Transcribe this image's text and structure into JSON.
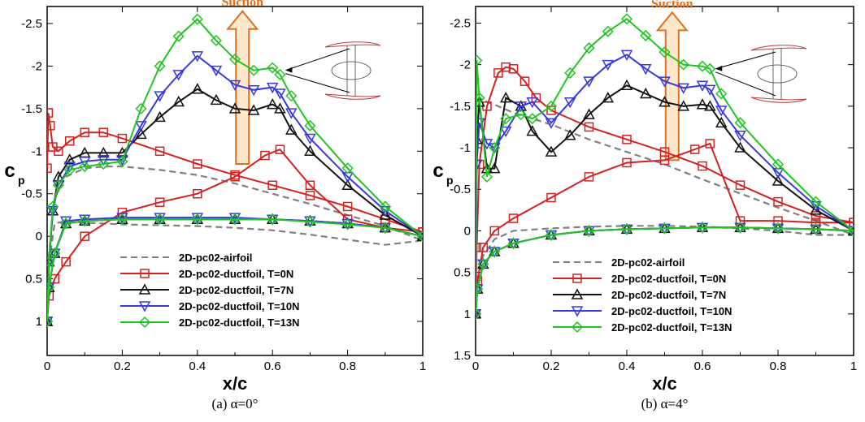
{
  "colors": {
    "airfoil": "#808080",
    "T0": "#d42020",
    "T7": "#111111",
    "T10": "#3838e0",
    "T13": "#22c422",
    "arrow_fill": "#fde8cc",
    "arrow_stroke": "#e0701f"
  },
  "chart_data": [
    {
      "type": "line",
      "caption": "(a) α=0°",
      "xlabel": "x/c",
      "ylabel": "c",
      "ylabel_sub": "p",
      "xlim": [
        0,
        1
      ],
      "ylim": [
        -2.7,
        1.4
      ],
      "y_inverted": true,
      "x_ticks": [
        "0",
        "0.2",
        "0.4",
        "0.6",
        "0.8",
        "1"
      ],
      "y_ticks": [
        "-2.5",
        "-2",
        "-1.5",
        "-1",
        "-0.5",
        "0",
        "0.5",
        "1"
      ],
      "annotation": "Suction",
      "legend": [
        "2D-pc02-airfoil",
        "2D-pc02-ductfoil, T=0N",
        "2D-pc02-ductfoil, T=7N",
        "2D-pc02-ductfoil, T=10N",
        "2D-pc02-ductfoil, T=13N"
      ],
      "series": [
        {
          "name": "2D-pc02-airfoil",
          "marker": "none",
          "dashed": true,
          "color_key": "airfoil",
          "x": [
            0,
            0.005,
            0.02,
            0.05,
            0.1,
            0.15,
            0.2,
            0.3,
            0.4,
            0.5,
            0.6,
            0.7,
            0.8,
            0.9,
            1.0,
            1.0,
            0.9,
            0.8,
            0.7,
            0.6,
            0.5,
            0.4,
            0.3,
            0.2,
            0.1,
            0.05,
            0.02,
            0.005,
            0
          ],
          "y": [
            1.0,
            0.2,
            -0.45,
            -0.7,
            -0.8,
            -0.82,
            -0.82,
            -0.78,
            -0.72,
            -0.62,
            -0.5,
            -0.38,
            -0.25,
            -0.12,
            0.05,
            0.05,
            0.1,
            0.04,
            -0.02,
            -0.07,
            -0.1,
            -0.12,
            -0.13,
            -0.14,
            -0.16,
            -0.18,
            -0.15,
            0.3,
            1.0
          ]
        },
        {
          "name": "2D-pc02-ductfoil, T=0N",
          "marker": "square",
          "color_key": "T0",
          "x": [
            0,
            0.003,
            0.008,
            0.015,
            0.03,
            0.06,
            0.1,
            0.15,
            0.2,
            0.3,
            0.4,
            0.5,
            0.6,
            0.7,
            0.8,
            0.9,
            1.0,
            1.0,
            0.9,
            0.8,
            0.7,
            0.62,
            0.58,
            0.5,
            0.4,
            0.3,
            0.2,
            0.1,
            0.05,
            0.02,
            0.005,
            0
          ],
          "y": [
            -0.8,
            -1.45,
            -1.3,
            -1.05,
            -1.0,
            -1.12,
            -1.22,
            -1.22,
            -1.15,
            -1.0,
            -0.85,
            -0.72,
            -0.6,
            -0.48,
            -0.35,
            -0.2,
            -0.05,
            -0.05,
            -0.1,
            -0.2,
            -0.6,
            -1.02,
            -0.95,
            -0.7,
            -0.5,
            -0.4,
            -0.28,
            0.0,
            0.3,
            0.5,
            0.7,
            1.0
          ]
        },
        {
          "name": "2D-pc02-ductfoil, T=7N",
          "marker": "triangle-up",
          "color_key": "T7",
          "x": [
            0,
            0.005,
            0.015,
            0.03,
            0.06,
            0.1,
            0.15,
            0.2,
            0.25,
            0.3,
            0.35,
            0.4,
            0.45,
            0.5,
            0.55,
            0.6,
            0.62,
            0.65,
            0.7,
            0.8,
            0.9,
            1.0,
            1.0,
            0.9,
            0.8,
            0.7,
            0.6,
            0.5,
            0.4,
            0.3,
            0.2,
            0.1,
            0.05,
            0.02,
            0.005,
            0
          ],
          "y": [
            1.0,
            0.3,
            -0.3,
            -0.7,
            -0.9,
            -0.98,
            -0.98,
            -0.98,
            -1.2,
            -1.4,
            -1.58,
            -1.73,
            -1.6,
            -1.5,
            -1.48,
            -1.55,
            -1.5,
            -1.25,
            -1.0,
            -0.6,
            -0.25,
            0.0,
            0.0,
            -0.1,
            -0.15,
            -0.18,
            -0.2,
            -0.2,
            -0.2,
            -0.2,
            -0.2,
            -0.18,
            -0.15,
            0.2,
            0.6,
            1.0
          ]
        },
        {
          "name": "2D-pc02-ductfoil, T=10N",
          "marker": "triangle-down",
          "color_key": "T10",
          "x": [
            0,
            0.005,
            0.015,
            0.03,
            0.06,
            0.1,
            0.15,
            0.2,
            0.25,
            0.3,
            0.35,
            0.4,
            0.45,
            0.5,
            0.55,
            0.6,
            0.62,
            0.65,
            0.7,
            0.8,
            0.9,
            1.0,
            1.0,
            0.9,
            0.8,
            0.7,
            0.6,
            0.5,
            0.4,
            0.3,
            0.2,
            0.1,
            0.05,
            0.02,
            0.005,
            0
          ],
          "y": [
            1.0,
            0.3,
            -0.3,
            -0.6,
            -0.82,
            -0.88,
            -0.9,
            -0.9,
            -1.3,
            -1.65,
            -1.9,
            -2.12,
            -1.95,
            -1.78,
            -1.72,
            -1.75,
            -1.68,
            -1.45,
            -1.15,
            -0.7,
            -0.3,
            0.0,
            0.0,
            -0.1,
            -0.15,
            -0.18,
            -0.2,
            -0.22,
            -0.22,
            -0.22,
            -0.22,
            -0.2,
            -0.18,
            0.2,
            0.6,
            1.0
          ]
        },
        {
          "name": "2D-pc02-ductfoil, T=13N",
          "marker": "diamond",
          "color_key": "T13",
          "x": [
            0,
            0.005,
            0.015,
            0.03,
            0.06,
            0.1,
            0.15,
            0.2,
            0.25,
            0.3,
            0.35,
            0.4,
            0.45,
            0.5,
            0.55,
            0.6,
            0.62,
            0.65,
            0.7,
            0.8,
            0.9,
            1.0,
            1.0,
            0.9,
            0.8,
            0.7,
            0.6,
            0.5,
            0.4,
            0.3,
            0.2,
            0.1,
            0.05,
            0.02,
            0.005,
            0
          ],
          "y": [
            1.0,
            0.3,
            -0.35,
            -0.6,
            -0.78,
            -0.82,
            -0.85,
            -0.88,
            -1.5,
            -2.0,
            -2.35,
            -2.55,
            -2.3,
            -2.08,
            -1.95,
            -1.98,
            -1.9,
            -1.65,
            -1.3,
            -0.8,
            -0.35,
            0.0,
            0.0,
            -0.1,
            -0.14,
            -0.17,
            -0.2,
            -0.2,
            -0.2,
            -0.2,
            -0.2,
            -0.18,
            -0.15,
            0.2,
            0.6,
            1.0
          ]
        }
      ]
    },
    {
      "type": "line",
      "caption": "(b) α=4°",
      "xlabel": "x/c",
      "ylabel": "c",
      "ylabel_sub": "p",
      "xlim": [
        0,
        1
      ],
      "ylim": [
        -2.7,
        1.5
      ],
      "y_inverted": true,
      "x_ticks": [
        "0",
        "0.2",
        "0.4",
        "0.6",
        "0.8",
        "1"
      ],
      "y_ticks": [
        "-2.5",
        "-2",
        "-1.5",
        "-1",
        "-0.5",
        "0",
        "0.5",
        "1",
        "1.5"
      ],
      "annotation": "Suction",
      "legend": [
        "2D-pc02-airfoil",
        "2D-pc02-ductfoil, T=0N",
        "2D-pc02-ductfoil, T=7N",
        "2D-pc02-ductfoil, T=10N",
        "2D-pc02-ductfoil, T=13N"
      ],
      "series": [
        {
          "name": "2D-pc02-airfoil",
          "marker": "none",
          "dashed": true,
          "color_key": "airfoil",
          "x": [
            0,
            0.003,
            0.01,
            0.03,
            0.06,
            0.1,
            0.15,
            0.2,
            0.3,
            0.4,
            0.5,
            0.6,
            0.7,
            0.8,
            0.9,
            1.0,
            1.0,
            0.9,
            0.8,
            0.7,
            0.6,
            0.5,
            0.4,
            0.3,
            0.2,
            0.1,
            0.05,
            0.02,
            0.005,
            0
          ],
          "y": [
            -0.8,
            -1.5,
            -1.6,
            -1.55,
            -1.5,
            -1.42,
            -1.35,
            -1.28,
            -1.1,
            -0.95,
            -0.8,
            -0.62,
            -0.45,
            -0.28,
            -0.12,
            0.05,
            0.05,
            0.05,
            0.0,
            -0.03,
            -0.05,
            -0.06,
            -0.06,
            -0.05,
            -0.03,
            0.0,
            0.1,
            0.3,
            0.6,
            1.0
          ]
        },
        {
          "name": "2D-pc02-ductfoil, T=0N",
          "marker": "square",
          "color_key": "T0",
          "x": [
            0,
            0.003,
            0.01,
            0.03,
            0.06,
            0.08,
            0.1,
            0.13,
            0.16,
            0.2,
            0.3,
            0.4,
            0.5,
            0.6,
            0.7,
            0.8,
            0.9,
            1.0,
            1.0,
            0.9,
            0.8,
            0.7,
            0.62,
            0.58,
            0.5,
            0.4,
            0.3,
            0.2,
            0.1,
            0.05,
            0.02,
            0.005,
            0
          ],
          "y": [
            1.0,
            0.2,
            -0.8,
            -1.5,
            -1.9,
            -1.97,
            -1.95,
            -1.8,
            -1.6,
            -1.45,
            -1.25,
            -1.1,
            -0.95,
            -0.78,
            -0.55,
            -0.35,
            -0.18,
            -0.1,
            -0.1,
            -0.1,
            -0.12,
            -0.12,
            -1.05,
            -0.98,
            -0.85,
            -0.82,
            -0.65,
            -0.4,
            -0.15,
            0.0,
            0.2,
            0.6,
            1.0
          ]
        },
        {
          "name": "2D-pc02-ductfoil, T=7N",
          "marker": "triangle-up",
          "color_key": "T7",
          "x": [
            0,
            0.003,
            0.01,
            0.03,
            0.05,
            0.08,
            0.12,
            0.15,
            0.2,
            0.25,
            0.3,
            0.35,
            0.4,
            0.45,
            0.5,
            0.55,
            0.6,
            0.62,
            0.65,
            0.7,
            0.8,
            0.9,
            1.0,
            1.0,
            0.9,
            0.8,
            0.7,
            0.6,
            0.5,
            0.4,
            0.3,
            0.2,
            0.1,
            0.05,
            0.02,
            0.005,
            0
          ],
          "y": [
            1.0,
            -1.1,
            -1.55,
            -0.75,
            -0.75,
            -1.6,
            -1.5,
            -1.2,
            -0.95,
            -1.15,
            -1.4,
            -1.6,
            -1.75,
            -1.65,
            -1.55,
            -1.5,
            -1.52,
            -1.5,
            -1.3,
            -1.0,
            -0.6,
            -0.25,
            0.0,
            0.0,
            -0.02,
            -0.03,
            -0.04,
            -0.04,
            -0.03,
            -0.02,
            0.0,
            0.05,
            0.15,
            0.25,
            0.4,
            0.7,
            1.0
          ]
        },
        {
          "name": "2D-pc02-ductfoil, T=10N",
          "marker": "triangle-down",
          "color_key": "T10",
          "x": [
            0,
            0.003,
            0.01,
            0.03,
            0.05,
            0.08,
            0.12,
            0.15,
            0.2,
            0.25,
            0.3,
            0.35,
            0.4,
            0.45,
            0.5,
            0.55,
            0.6,
            0.62,
            0.65,
            0.7,
            0.8,
            0.9,
            1.0,
            1.0,
            0.9,
            0.8,
            0.7,
            0.6,
            0.5,
            0.4,
            0.3,
            0.2,
            0.1,
            0.05,
            0.02,
            0.005,
            0
          ],
          "y": [
            1.0,
            -0.8,
            -1.3,
            -1.05,
            -1.0,
            -1.2,
            -1.5,
            -1.55,
            -1.3,
            -1.55,
            -1.8,
            -2.0,
            -2.12,
            -1.95,
            -1.8,
            -1.72,
            -1.75,
            -1.7,
            -1.45,
            -1.15,
            -0.7,
            -0.3,
            0.0,
            0.0,
            -0.02,
            -0.03,
            -0.04,
            -0.04,
            -0.03,
            -0.02,
            0.0,
            0.05,
            0.15,
            0.25,
            0.4,
            0.7,
            1.0
          ]
        },
        {
          "name": "2D-pc02-ductfoil, T=13N",
          "marker": "diamond",
          "color_key": "T13",
          "x": [
            0,
            0.003,
            0.01,
            0.03,
            0.05,
            0.08,
            0.12,
            0.15,
            0.2,
            0.25,
            0.3,
            0.35,
            0.4,
            0.45,
            0.5,
            0.55,
            0.6,
            0.62,
            0.65,
            0.7,
            0.8,
            0.9,
            1.0,
            1.0,
            0.9,
            0.8,
            0.7,
            0.6,
            0.5,
            0.4,
            0.3,
            0.2,
            0.1,
            0.05,
            0.02,
            0.005,
            0
          ],
          "y": [
            1.0,
            -2.05,
            -1.6,
            -0.65,
            -1.0,
            -1.35,
            -1.4,
            -1.35,
            -1.5,
            -1.9,
            -2.2,
            -2.4,
            -2.55,
            -2.35,
            -2.15,
            -2.0,
            -1.98,
            -1.95,
            -1.65,
            -1.3,
            -0.8,
            -0.35,
            0.0,
            0.0,
            -0.02,
            -0.03,
            -0.04,
            -0.04,
            -0.03,
            -0.02,
            0.0,
            0.05,
            0.15,
            0.25,
            0.4,
            0.7,
            1.0
          ]
        }
      ]
    }
  ]
}
